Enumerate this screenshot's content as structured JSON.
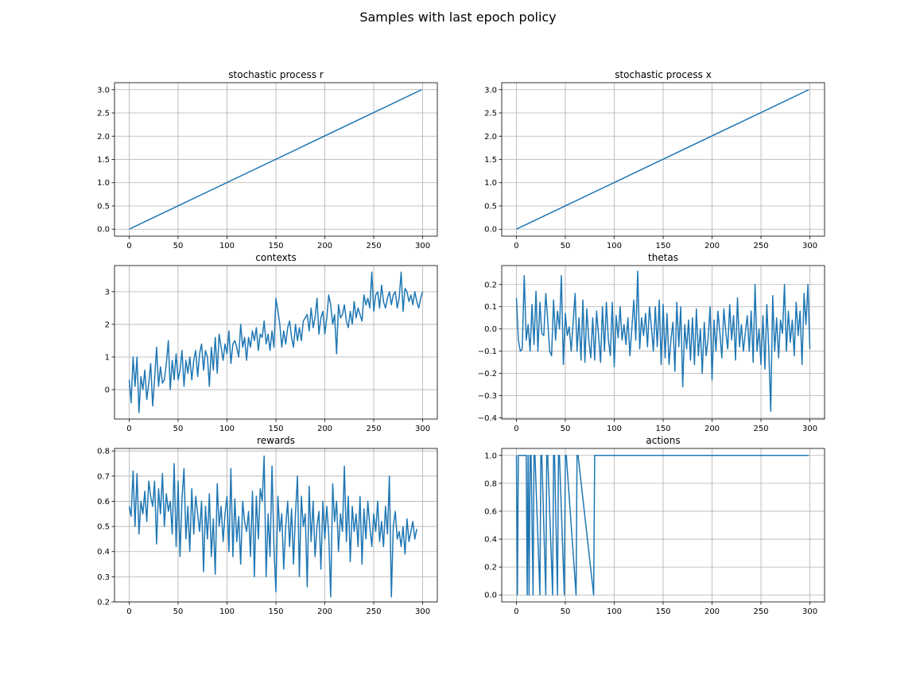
{
  "figure": {
    "title": "Samples with last epoch policy"
  },
  "colors": {
    "line": "#1f77b4",
    "grid": "#b0b0b0",
    "axis": "#000000"
  },
  "chart_data": [
    {
      "id": "r",
      "type": "line",
      "title": "stochastic process r",
      "xlim": [
        -15,
        315
      ],
      "ylim": [
        -0.15,
        3.15
      ],
      "xticks": [
        0,
        50,
        100,
        150,
        200,
        250,
        300
      ],
      "yticks": [
        0,
        0.5,
        1,
        1.5,
        2,
        2.5,
        3
      ],
      "ytick_labels": [
        "0.0",
        "0.5",
        "1.0",
        "1.5",
        "2.0",
        "2.5",
        "3.0"
      ],
      "grid": true,
      "series": [
        {
          "x": [
            0,
            299
          ],
          "y": [
            0,
            3
          ]
        }
      ]
    },
    {
      "id": "x",
      "type": "line",
      "title": "stochastic process x",
      "xlim": [
        -15,
        315
      ],
      "ylim": [
        -0.15,
        3.15
      ],
      "xticks": [
        0,
        50,
        100,
        150,
        200,
        250,
        300
      ],
      "yticks": [
        0,
        0.5,
        1,
        1.5,
        2,
        2.5,
        3
      ],
      "ytick_labels": [
        "0.0",
        "0.5",
        "1.0",
        "1.5",
        "2.0",
        "2.5",
        "3.0"
      ],
      "grid": true,
      "series": [
        {
          "x": [
            0,
            299
          ],
          "y": [
            0,
            3
          ]
        }
      ]
    },
    {
      "id": "contexts",
      "type": "line",
      "title": "contexts",
      "xlim": [
        -15,
        315
      ],
      "ylim": [
        -0.9,
        3.8
      ],
      "xticks": [
        0,
        50,
        100,
        150,
        200,
        250,
        300
      ],
      "yticks": [
        0,
        1,
        2,
        3
      ],
      "ytick_labels": [
        "0",
        "1",
        "2",
        "3"
      ],
      "grid": true,
      "series": [
        {
          "x_start": 0,
          "x_step": 2,
          "y": [
            0.3,
            -0.4,
            1.0,
            0.1,
            1.0,
            -0.7,
            0.4,
            0.0,
            0.6,
            -0.3,
            0.2,
            0.8,
            -0.5,
            0.3,
            1.3,
            0.1,
            0.7,
            0.2,
            0.3,
            0.8,
            1.5,
            0.0,
            0.9,
            0.3,
            1.1,
            0.3,
            0.6,
            1.2,
            0.1,
            0.9,
            0.5,
            1.0,
            0.3,
            0.9,
            1.2,
            0.4,
            1.1,
            1.4,
            0.6,
            1.2,
            1.0,
            0.1,
            1.3,
            0.6,
            1.6,
            0.5,
            1.7,
            1.3,
            0.9,
            1.4,
            1.1,
            1.8,
            0.8,
            1.4,
            1.5,
            1.3,
            1.0,
            2.0,
            1.3,
            1.6,
            0.9,
            1.6,
            1.3,
            1.8,
            1.5,
            1.9,
            1.2,
            1.7,
            1.6,
            2.1,
            1.4,
            1.7,
            1.2,
            1.8,
            1.3,
            2.8,
            2.4,
            2.0,
            1.3,
            1.8,
            1.4,
            1.9,
            2.1,
            1.6,
            1.3,
            2.0,
            1.5,
            1.9,
            1.5,
            2.1,
            2.2,
            2.3,
            1.8,
            2.5,
            1.9,
            2.2,
            2.8,
            1.7,
            2.2,
            2.4,
            1.7,
            2.2,
            2.9,
            2.6,
            2.0,
            2.3,
            1.1,
            2.6,
            2.2,
            2.3,
            2.6,
            2.1,
            1.9,
            2.4,
            2.0,
            2.7,
            2.2,
            2.5,
            2.3,
            2.1,
            2.9,
            2.6,
            2.8,
            2.5,
            3.6,
            2.4,
            2.9,
            3.0,
            2.5,
            3.2,
            2.7,
            2.5,
            2.8,
            3.0,
            2.6,
            2.9,
            3.0,
            2.5,
            2.8,
            3.6,
            2.4,
            3.1,
            3.0,
            2.7,
            2.9,
            2.6,
            3.0,
            2.7,
            2.5,
            2.8,
            3.0
          ]
        }
      ]
    },
    {
      "id": "thetas",
      "type": "line",
      "title": "thetas",
      "xlim": [
        -15,
        315
      ],
      "ylim": [
        -0.405,
        0.285
      ],
      "xticks": [
        0,
        50,
        100,
        150,
        200,
        250,
        300
      ],
      "yticks": [
        -0.4,
        -0.3,
        -0.2,
        -0.1,
        0.0,
        0.1,
        0.2
      ],
      "ytick_labels": [
        "−0.4",
        "−0.3",
        "−0.2",
        "−0.1",
        "0.0",
        "0.1",
        "0.2"
      ],
      "grid": true,
      "series": [
        {
          "x_start": 0,
          "x_step": 2,
          "y": [
            0.14,
            -0.05,
            -0.1,
            -0.09,
            0.24,
            -0.05,
            0.02,
            -0.1,
            0.11,
            -0.07,
            0.17,
            -0.1,
            0.12,
            -0.02,
            -0.03,
            0.16,
            0.04,
            -0.1,
            -0.12,
            0.13,
            -0.05,
            0.08,
            0.0,
            0.24,
            -0.16,
            0.07,
            -0.03,
            0.01,
            -0.1,
            0.03,
            0.16,
            -0.1,
            0.05,
            -0.14,
            0.13,
            -0.15,
            0.09,
            -0.05,
            -0.13,
            0.05,
            -0.14,
            0.08,
            -0.03,
            -0.15,
            0.1,
            -0.1,
            0.12,
            -0.05,
            -0.12,
            0.12,
            -0.17,
            0.06,
            -0.04,
            0.1,
            -0.05,
            0.02,
            -0.07,
            0.05,
            -0.12,
            0.0,
            0.13,
            -0.05,
            0.26,
            -0.09,
            0.05,
            -0.03,
            0.07,
            -0.08,
            0.1,
            0.01,
            -0.1,
            0.1,
            -0.08,
            0.13,
            -0.16,
            0.11,
            -0.13,
            0.07,
            -0.16,
            -0.05,
            0.03,
            -0.19,
            0.12,
            -0.08,
            0.1,
            -0.26,
            0.02,
            -0.09,
            0.04,
            -0.14,
            0.05,
            -0.16,
            0.09,
            -0.12,
            0.0,
            -0.2,
            0.03,
            -0.12,
            -0.04,
            0.1,
            -0.23,
            0.04,
            -0.1,
            0.08,
            -0.02,
            -0.13,
            0.09,
            -0.01,
            -0.09,
            0.11,
            -0.05,
            0.06,
            -0.14,
            0.14,
            -0.08,
            0.02,
            -0.1,
            -0.02,
            0.06,
            -0.1,
            0.08,
            -0.15,
            0.2,
            -0.1,
            0.0,
            -0.16,
            0.06,
            -0.18,
            0.11,
            -0.1,
            -0.37,
            0.15,
            -0.1,
            0.05,
            -0.13,
            0.04,
            -0.02,
            0.2,
            -0.1,
            0.08,
            -0.06,
            0.04,
            -0.12,
            0.12,
            -0.03,
            0.08,
            -0.16,
            0.16,
            0.02,
            0.2,
            -0.09
          ]
        }
      ]
    },
    {
      "id": "rewards",
      "type": "line",
      "title": "rewards",
      "xlim": [
        -15,
        315
      ],
      "ylim": [
        0.2,
        0.81
      ],
      "xticks": [
        0,
        50,
        100,
        150,
        200,
        250,
        300
      ],
      "yticks": [
        0.2,
        0.3,
        0.4,
        0.5,
        0.6,
        0.7,
        0.8
      ],
      "ytick_labels": [
        "0.2",
        "0.3",
        "0.4",
        "0.5",
        "0.6",
        "0.7",
        "0.8"
      ],
      "grid": true,
      "series": [
        {
          "x_start": 0,
          "x_step": 2,
          "y": [
            0.58,
            0.54,
            0.72,
            0.5,
            0.71,
            0.47,
            0.6,
            0.55,
            0.64,
            0.52,
            0.68,
            0.62,
            0.58,
            0.68,
            0.43,
            0.65,
            0.55,
            0.71,
            0.5,
            0.63,
            0.56,
            0.6,
            0.47,
            0.75,
            0.42,
            0.68,
            0.38,
            0.61,
            0.73,
            0.45,
            0.58,
            0.4,
            0.65,
            0.47,
            0.62,
            0.55,
            0.48,
            0.6,
            0.32,
            0.58,
            0.45,
            0.63,
            0.38,
            0.53,
            0.31,
            0.67,
            0.5,
            0.58,
            0.44,
            0.55,
            0.62,
            0.4,
            0.73,
            0.38,
            0.61,
            0.44,
            0.54,
            0.35,
            0.6,
            0.52,
            0.48,
            0.56,
            0.38,
            0.64,
            0.3,
            0.62,
            0.45,
            0.65,
            0.6,
            0.78,
            0.3,
            0.55,
            0.38,
            0.74,
            0.42,
            0.24,
            0.62,
            0.48,
            0.55,
            0.33,
            0.5,
            0.6,
            0.42,
            0.57,
            0.35,
            0.55,
            0.7,
            0.3,
            0.62,
            0.5,
            0.55,
            0.26,
            0.66,
            0.44,
            0.6,
            0.38,
            0.5,
            0.56,
            0.33,
            0.6,
            0.45,
            0.58,
            0.47,
            0.22,
            0.67,
            0.52,
            0.6,
            0.4,
            0.55,
            0.48,
            0.74,
            0.44,
            0.62,
            0.36,
            0.58,
            0.48,
            0.55,
            0.42,
            0.62,
            0.35,
            0.57,
            0.45,
            0.6,
            0.5,
            0.42,
            0.55,
            0.48,
            0.6,
            0.44,
            0.52,
            0.42,
            0.58,
            0.47,
            0.7,
            0.22,
            0.5,
            0.56,
            0.45,
            0.48,
            0.42,
            0.5,
            0.39,
            0.53,
            0.44,
            0.48,
            0.52,
            0.45,
            0.49
          ]
        }
      ]
    },
    {
      "id": "actions",
      "type": "line",
      "title": "actions",
      "xlim": [
        -15,
        315
      ],
      "ylim": [
        -0.05,
        1.05
      ],
      "xticks": [
        0,
        50,
        100,
        150,
        200,
        250,
        300
      ],
      "yticks": [
        0,
        0.2,
        0.4,
        0.6,
        0.8,
        1.0
      ],
      "ytick_labels": [
        "0.0",
        "0.2",
        "0.4",
        "0.6",
        "0.8",
        "1.0"
      ],
      "grid": true,
      "series": [
        {
          "x": [
            0,
            1,
            2,
            10,
            11,
            12,
            13,
            14,
            15,
            17,
            18,
            19,
            24,
            25,
            26,
            30,
            31,
            32,
            37,
            38,
            39,
            42,
            43,
            44,
            49,
            50,
            51,
            61,
            62,
            63,
            79,
            80,
            81,
            299
          ],
          "y": [
            1,
            0,
            1,
            1,
            0,
            1,
            0,
            1,
            1,
            0,
            1,
            1,
            0,
            1,
            1,
            0,
            1,
            1,
            0,
            1,
            1,
            0,
            1,
            1,
            0,
            1,
            1,
            0,
            1,
            1,
            0,
            1,
            1,
            1
          ]
        }
      ]
    }
  ]
}
